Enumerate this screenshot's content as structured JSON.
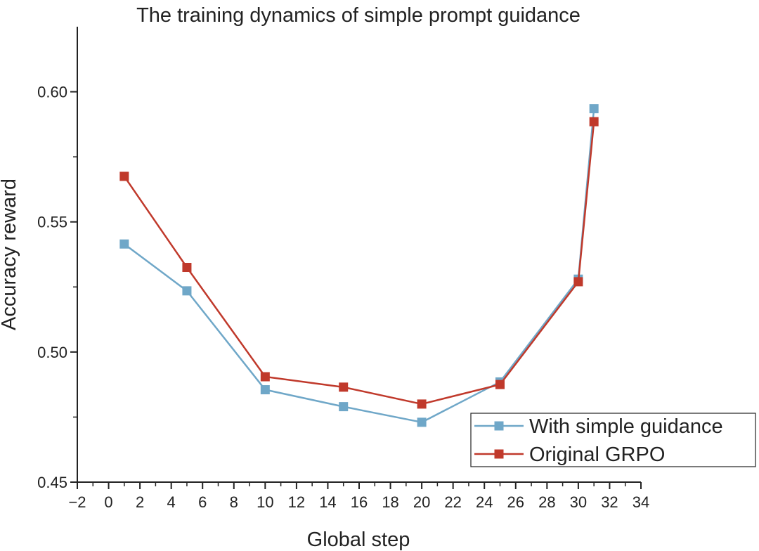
{
  "chart_data": {
    "type": "line",
    "title": "The training dynamics of simple prompt guidance",
    "xlabel": "Global step",
    "ylabel": "Accuracy reward",
    "xlim": [
      -2,
      34
    ],
    "ylim": [
      0.45,
      0.625
    ],
    "xticks": [
      "−2",
      "0",
      "2",
      "4",
      "6",
      "8",
      "10",
      "12",
      "14",
      "16",
      "18",
      "20",
      "22",
      "24",
      "26",
      "28",
      "30",
      "32",
      "34"
    ],
    "yticks": [
      "0.45",
      "0.50",
      "0.55",
      "0.60"
    ],
    "grid": false,
    "legend_position": "bottom-right",
    "x": [
      1,
      5,
      10,
      15,
      20,
      25,
      30,
      31
    ],
    "series": [
      {
        "name": "With simple guidance",
        "color": "#6fa7c8",
        "values": [
          0.5415,
          0.5235,
          0.4855,
          0.479,
          0.473,
          0.4885,
          0.528,
          0.5935
        ]
      },
      {
        "name": "Original GRPO",
        "color": "#c0392b",
        "values": [
          0.5675,
          0.5325,
          0.4905,
          0.4865,
          0.48,
          0.4875,
          0.527,
          0.5885
        ]
      }
    ]
  }
}
